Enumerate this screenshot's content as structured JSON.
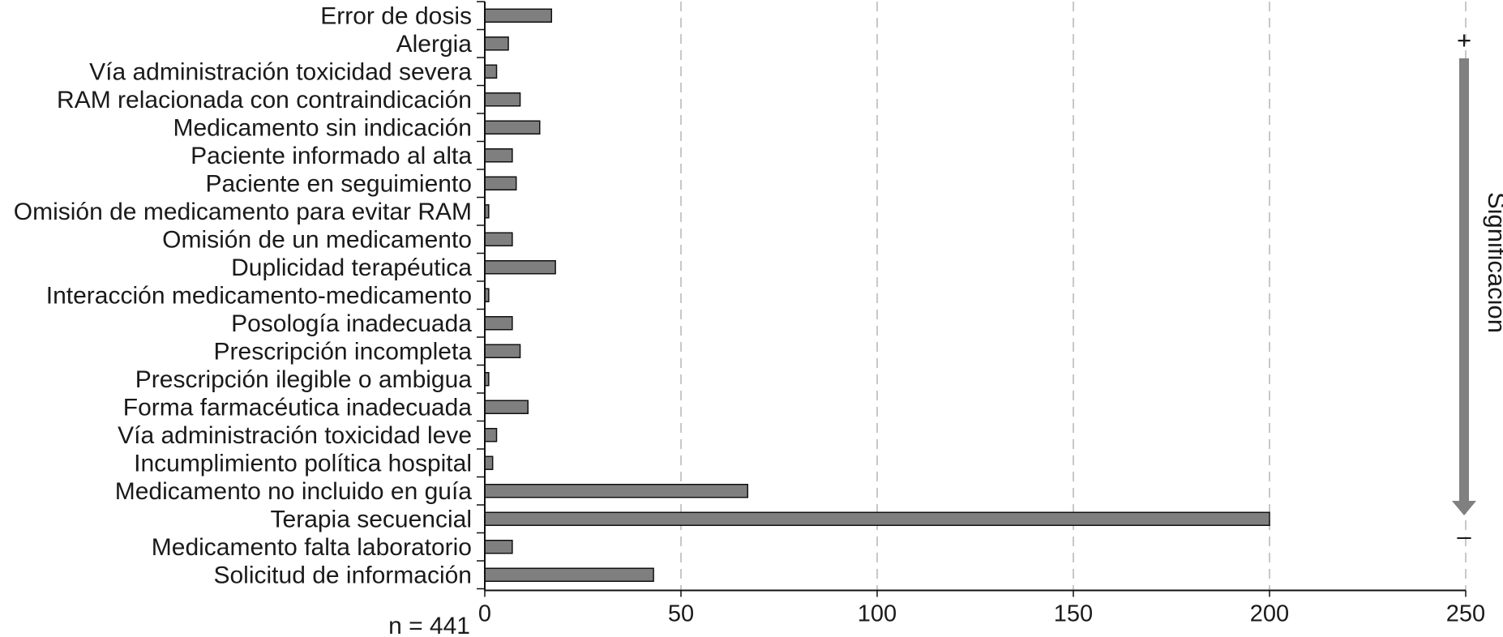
{
  "chart_data": {
    "type": "bar",
    "orientation": "horizontal",
    "categories": [
      "Error de dosis",
      "Alergia",
      "Vía administración toxicidad severa",
      "RAM relacionada con contraindicación",
      "Medicamento sin indicación",
      "Paciente informado al alta",
      "Paciente en seguimiento",
      "Omisión de medicamento para evitar RAM",
      "Omisión de un medicamento",
      "Duplicidad terapéutica",
      "Interacción medicamento-medicamento",
      "Posología inadecuada",
      "Prescripción incompleta",
      "Prescripción ilegible o ambigua",
      "Forma farmacéutica inadecuada",
      "Vía administración toxicidad leve",
      "Incumplimiento política hospital",
      "Medicamento no incluido en guía",
      "Terapia secuencial",
      "Medicamento falta laboratorio",
      "Solicitud de información"
    ],
    "values": [
      17,
      6,
      3,
      9,
      14,
      7,
      8,
      1,
      7,
      18,
      1,
      7,
      9,
      1,
      11,
      3,
      2,
      67,
      200,
      7,
      43
    ],
    "xlim": [
      0,
      250
    ],
    "xticks": [
      0,
      50,
      100,
      150,
      200,
      250
    ],
    "grid": "vertical-dashed",
    "bar_color": "#7f7f7f",
    "note": "n = 441",
    "significance": {
      "label": "Significación",
      "top": "+",
      "bottom": "–"
    }
  }
}
